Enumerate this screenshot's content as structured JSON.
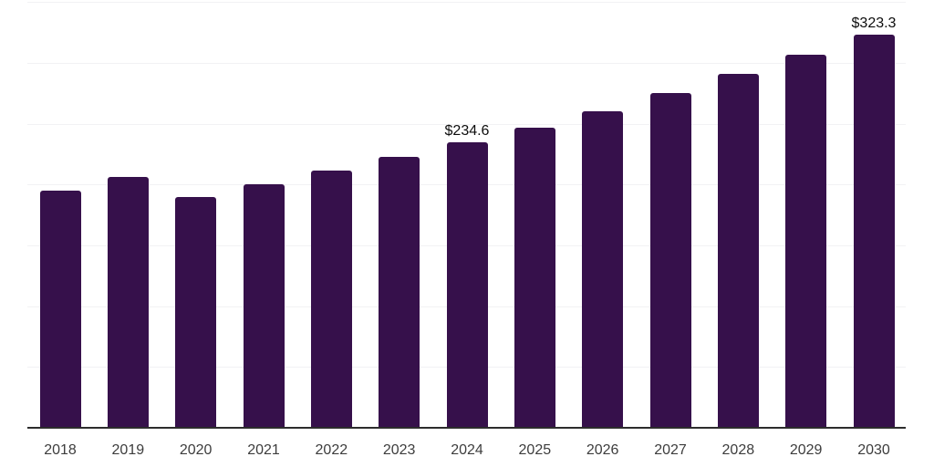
{
  "chart_data": {
    "type": "bar",
    "title": "",
    "xlabel": "",
    "ylabel": "",
    "legend": "none",
    "grid": "horizontal",
    "categories": [
      "2018",
      "2019",
      "2020",
      "2021",
      "2022",
      "2023",
      "2024",
      "2025",
      "2026",
      "2027",
      "2028",
      "2029",
      "2030"
    ],
    "values": [
      194.8,
      205.9,
      189.9,
      200.6,
      211.4,
      222.6,
      234.6,
      246.4,
      260.0,
      275.0,
      290.7,
      307.0,
      323.3
    ],
    "value_labels": [
      {
        "category": "2024",
        "text": "$234.6"
      },
      {
        "category": "2030",
        "text": "$323.3"
      }
    ],
    "ylim": [
      0,
      350
    ],
    "gridline_values": [
      50,
      100,
      150,
      200,
      250,
      300,
      350
    ],
    "colors": {
      "bar": "#36104b",
      "axis_line": "#2d2d2d",
      "gridline": "#f2f2f4",
      "tick_label": "#3d3d3d",
      "value_label": "#0d0d0d",
      "background": "#ffffff"
    }
  }
}
